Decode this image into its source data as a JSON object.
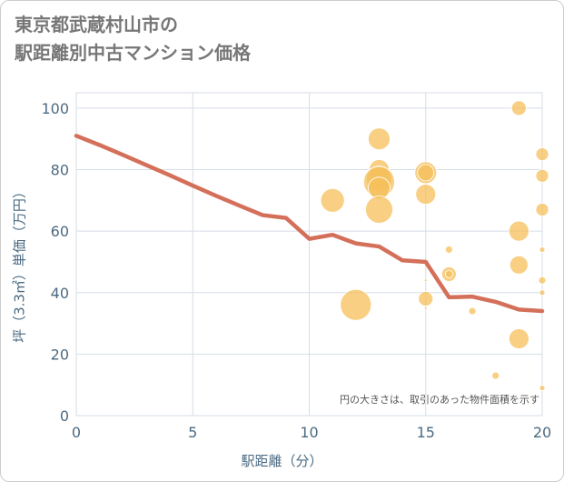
{
  "title_line1": "東京都武蔵村山市の",
  "title_line2": "駅距離別中古マンション価格",
  "chart_data": {
    "type": "scatter",
    "xlabel": "駅距離（分）",
    "ylabel": "坪（3.3㎡）単価（万円）",
    "xlim": [
      0,
      20
    ],
    "ylim": [
      0,
      105
    ],
    "x_ticks": [
      0,
      5,
      10,
      15,
      20
    ],
    "y_ticks": [
      0,
      20,
      40,
      60,
      80,
      100
    ],
    "grid": true,
    "note": "円の大きさは、取引のあった物件面積を示す",
    "colors": {
      "bubble": "#f5bf5a",
      "line": "#d4705a",
      "grid": "#d6dee6",
      "axis_text": "#4b6a82"
    },
    "bubbles": [
      {
        "x": 12,
        "y": 36,
        "r": 17
      },
      {
        "x": 11,
        "y": 70,
        "r": 13
      },
      {
        "x": 13,
        "y": 90,
        "r": 12
      },
      {
        "x": 13,
        "y": 80,
        "r": 11
      },
      {
        "x": 13,
        "y": 77,
        "r": 14
      },
      {
        "x": 13,
        "y": 76,
        "r": 17
      },
      {
        "x": 13,
        "y": 74,
        "r": 12
      },
      {
        "x": 13,
        "y": 67,
        "r": 15
      },
      {
        "x": 15,
        "y": 79,
        "r": 12
      },
      {
        "x": 15,
        "y": 79,
        "r": 9
      },
      {
        "x": 15,
        "y": 72,
        "r": 11
      },
      {
        "x": 15,
        "y": 38,
        "r": 8
      },
      {
        "x": 15,
        "y": 44,
        "r": 1.5
      },
      {
        "x": 15,
        "y": 35,
        "r": 1.5
      },
      {
        "x": 16,
        "y": 54,
        "r": 4
      },
      {
        "x": 16,
        "y": 46,
        "r": 8
      },
      {
        "x": 16,
        "y": 46,
        "r": 4
      },
      {
        "x": 17,
        "y": 34,
        "r": 4
      },
      {
        "x": 18,
        "y": 13,
        "r": 4
      },
      {
        "x": 19,
        "y": 100,
        "r": 8
      },
      {
        "x": 19,
        "y": 60,
        "r": 11
      },
      {
        "x": 19,
        "y": 49,
        "r": 10
      },
      {
        "x": 19,
        "y": 25,
        "r": 11
      },
      {
        "x": 20,
        "y": 85,
        "r": 7
      },
      {
        "x": 20,
        "y": 78,
        "r": 7
      },
      {
        "x": 20,
        "y": 67,
        "r": 7
      },
      {
        "x": 20,
        "y": 54,
        "r": 3
      },
      {
        "x": 20,
        "y": 44,
        "r": 4
      },
      {
        "x": 20,
        "y": 40,
        "r": 3
      },
      {
        "x": 20,
        "y": 9,
        "r": 3
      }
    ],
    "line": {
      "x": [
        0,
        1,
        2,
        3,
        4,
        5,
        6,
        7,
        8,
        9,
        10,
        11,
        12,
        13,
        14,
        15,
        16,
        17,
        18,
        19,
        20
      ],
      "y": [
        91,
        88,
        84.8,
        81.5,
        78.2,
        74.8,
        71.5,
        68.3,
        65.2,
        64.3,
        57.5,
        58.8,
        56,
        55,
        50.5,
        50,
        38.5,
        38.7,
        37,
        34.5,
        34
      ]
    }
  }
}
